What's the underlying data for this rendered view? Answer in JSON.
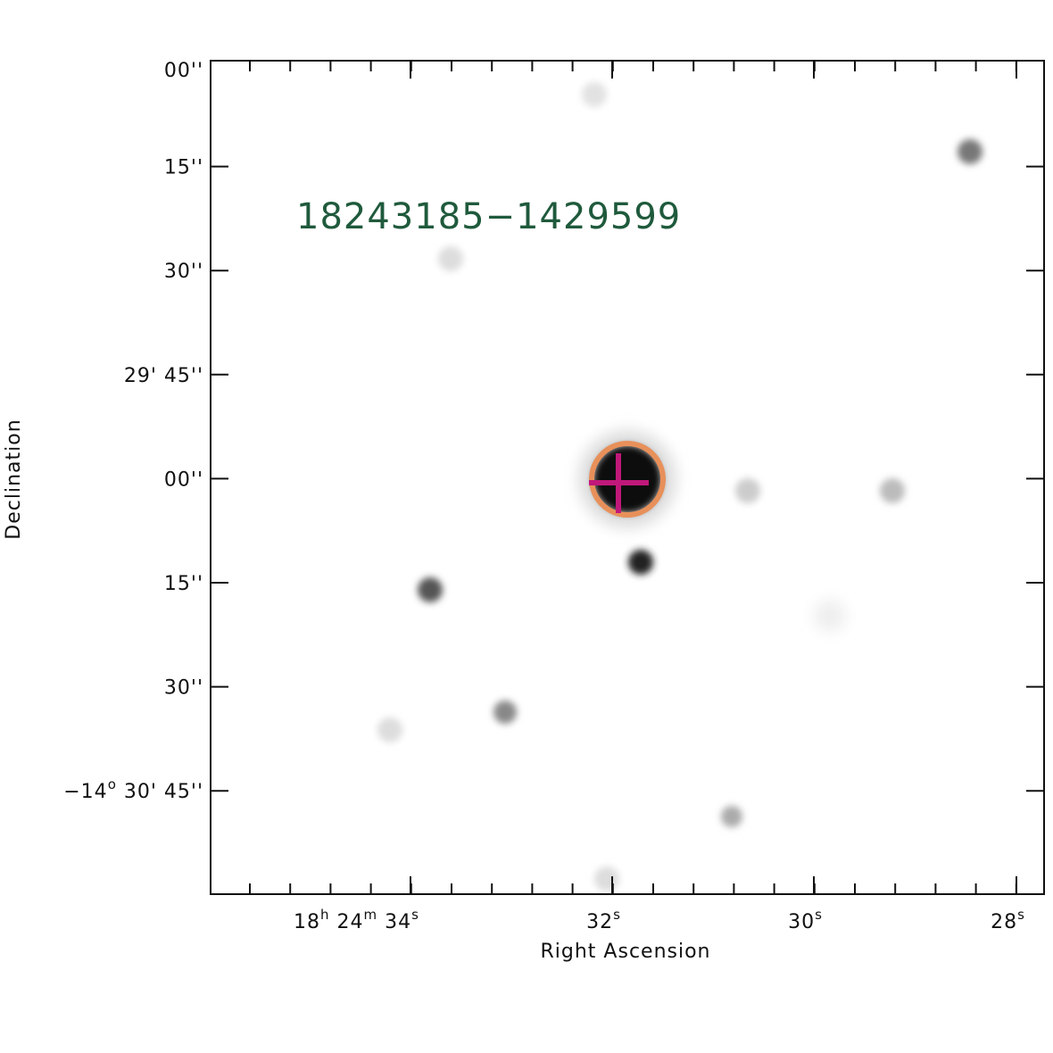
{
  "header": {
    "title": "18243185−1429599"
  },
  "axes": {
    "x_label": "Right Ascension",
    "y_label": "Declination",
    "x_ticks": [
      [
        "18",
        "h",
        " 24",
        "m",
        " 34",
        "s"
      ],
      [
        "32",
        "s"
      ],
      [
        "30",
        "s"
      ],
      [
        "28",
        "s"
      ]
    ],
    "y_ticks": [
      [
        "00''"
      ],
      [
        "15''"
      ],
      [
        "30''"
      ],
      [
        "29' 45''"
      ],
      [
        "00''"
      ],
      [
        "15''"
      ],
      [
        "30''"
      ],
      [
        "−14",
        "o",
        " 30' 45''"
      ]
    ]
  }
}
